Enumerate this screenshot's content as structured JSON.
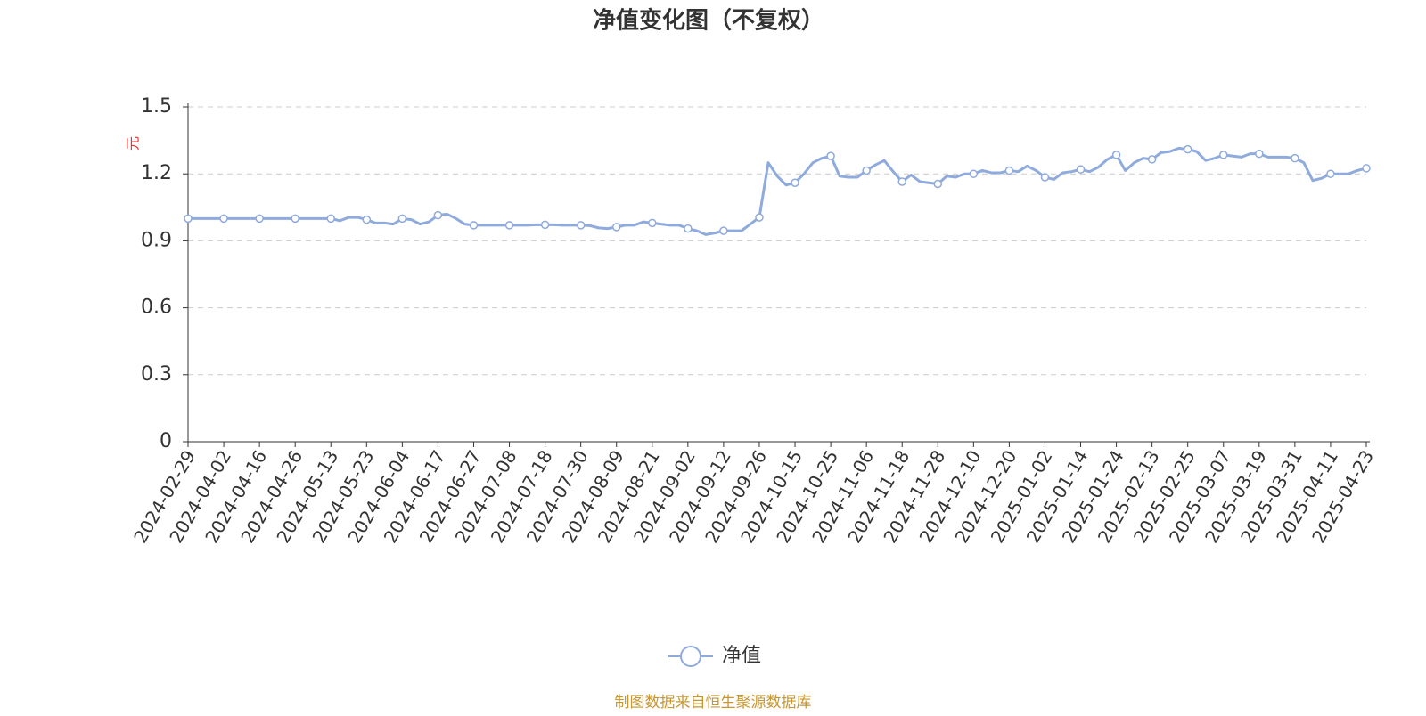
{
  "chart_data": {
    "type": "line",
    "title": "净值变化图（不复权）",
    "y_axis_label": "元",
    "source": "制图数据来自恒生聚源数据库",
    "categories": [
      "2024-02-29",
      null,
      null,
      null,
      "2024-04-02",
      null,
      null,
      null,
      "2024-04-16",
      null,
      null,
      null,
      "2024-04-26",
      null,
      null,
      null,
      "2024-05-13",
      null,
      null,
      null,
      "2024-05-23",
      null,
      null,
      null,
      "2024-06-04",
      null,
      null,
      null,
      "2024-06-17",
      null,
      null,
      null,
      "2024-06-27",
      null,
      null,
      null,
      "2024-07-08",
      null,
      null,
      null,
      "2024-07-18",
      null,
      null,
      null,
      "2024-07-30",
      null,
      null,
      null,
      "2024-08-09",
      null,
      null,
      null,
      "2024-08-21",
      null,
      null,
      null,
      "2024-09-02",
      null,
      null,
      null,
      "2024-09-12",
      null,
      null,
      null,
      "2024-09-26",
      null,
      null,
      null,
      "2024-10-15",
      null,
      null,
      null,
      "2024-10-25",
      null,
      null,
      null,
      "2024-11-06",
      null,
      null,
      null,
      "2024-11-18",
      null,
      null,
      null,
      "2024-11-28",
      null,
      null,
      null,
      "2024-12-10",
      null,
      null,
      null,
      "2024-12-20",
      null,
      null,
      null,
      "2025-01-02",
      null,
      null,
      null,
      "2025-01-14",
      null,
      null,
      null,
      "2025-01-24",
      null,
      null,
      null,
      "2025-02-13",
      null,
      null,
      null,
      "2025-02-25",
      null,
      null,
      null,
      "2025-03-07",
      null,
      null,
      null,
      "2025-03-19",
      null,
      null,
      null,
      "2025-03-31",
      null,
      null,
      null,
      "2025-04-11",
      null,
      null,
      null,
      "2025-04-23"
    ],
    "series": [
      {
        "name": "净值",
        "color": "#8faadc",
        "values": [
          1,
          1,
          1,
          1,
          1,
          1,
          1,
          1,
          1,
          1,
          1,
          1,
          1,
          1,
          1,
          1,
          1,
          0.99,
          1.005,
          1.005,
          0.995,
          0.98,
          0.98,
          0.975,
          1,
          0.995,
          0.975,
          0.985,
          1.015,
          1.02,
          1,
          0.975,
          0.97,
          0.97,
          0.97,
          0.97,
          0.97,
          0.97,
          0.97,
          0.972,
          0.972,
          0.972,
          0.97,
          0.97,
          0.97,
          0.968,
          0.958,
          0.955,
          0.962,
          0.97,
          0.97,
          0.985,
          0.98,
          0.975,
          0.97,
          0.97,
          0.955,
          0.945,
          0.928,
          0.935,
          0.945,
          0.945,
          0.945,
          0.975,
          1.005,
          1.25,
          1.19,
          1.15,
          1.16,
          1.2,
          1.25,
          1.27,
          1.28,
          1.19,
          1.185,
          1.185,
          1.215,
          1.24,
          1.26,
          1.21,
          1.165,
          1.195,
          1.165,
          1.16,
          1.155,
          1.19,
          1.185,
          1.2,
          1.2,
          1.215,
          1.205,
          1.205,
          1.215,
          1.21,
          1.235,
          1.215,
          1.185,
          1.175,
          1.205,
          1.21,
          1.22,
          1.21,
          1.23,
          1.265,
          1.285,
          1.215,
          1.25,
          1.27,
          1.265,
          1.295,
          1.3,
          1.315,
          1.31,
          1.3,
          1.26,
          1.27,
          1.285,
          1.28,
          1.275,
          1.29,
          1.29,
          1.275,
          1.275,
          1.275,
          1.27,
          1.25,
          1.17,
          1.18,
          1.2,
          1.2,
          1.2,
          1.215,
          1.225
        ]
      }
    ],
    "ylim": [
      0,
      1.5
    ],
    "yticks": [
      0,
      0.3,
      0.6,
      0.9,
      1.2,
      1.5
    ],
    "grid": true,
    "legend": "bottom"
  }
}
